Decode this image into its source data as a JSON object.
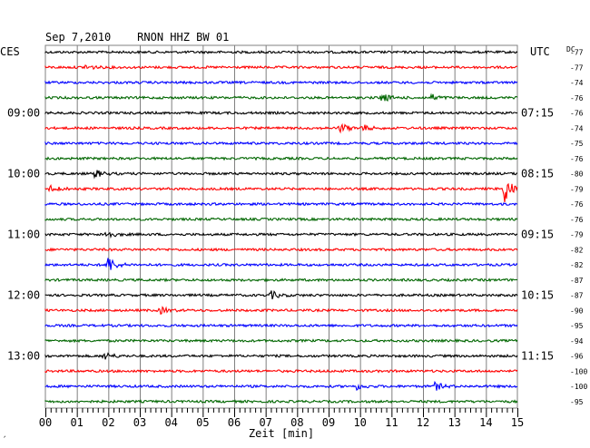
{
  "header": {
    "title": "Sep 7,2010    RNON HHZ BW 01",
    "left_timezone": "CES",
    "right_timezone": "UTC",
    "dc_label": "DC"
  },
  "footer": {
    "x_axis_label": "Zeit [min]",
    "corner_mark": "´"
  },
  "colors": {
    "trace_cycle": [
      "#000000",
      "#ff0000",
      "#0000ff",
      "#006600"
    ],
    "grid": "#808080",
    "background": "#ffffff"
  },
  "chart_data": {
    "type": "line",
    "title": "Sep 7,2010    RNON HHZ BW 01",
    "xlabel": "Zeit [min]",
    "xlim": [
      0,
      15
    ],
    "x_ticks": [
      "00",
      "01",
      "02",
      "03",
      "04",
      "05",
      "06",
      "07",
      "08",
      "09",
      "10",
      "11",
      "12",
      "13",
      "14",
      "15"
    ],
    "rows": 24,
    "grid": true,
    "left_time_labels": [
      {
        "row": 4,
        "text": "09:00"
      },
      {
        "row": 8,
        "text": "10:00"
      },
      {
        "row": 12,
        "text": "11:00"
      },
      {
        "row": 16,
        "text": "12:00"
      },
      {
        "row": 20,
        "text": "13:00"
      }
    ],
    "right_time_labels": [
      {
        "row": 4,
        "text": "07:15"
      },
      {
        "row": 8,
        "text": "08:15"
      },
      {
        "row": 12,
        "text": "09:15"
      },
      {
        "row": 16,
        "text": "10:15"
      },
      {
        "row": 20,
        "text": "11:15"
      }
    ],
    "dc_offsets": [
      "-77",
      "-77",
      "-74",
      "-76",
      "-76",
      "-74",
      "-75",
      "-76",
      "-80",
      "-79",
      "-76",
      "-76",
      "-79",
      "-82",
      "-82",
      "-87",
      "-87",
      "-90",
      "-95",
      "-94",
      "-96",
      "-100",
      "-100",
      "-95"
    ],
    "events": [
      {
        "row": 1,
        "minute": 1.3,
        "amplitude": 3
      },
      {
        "row": 3,
        "minute": 10.7,
        "amplitude": 5
      },
      {
        "row": 3,
        "minute": 12.3,
        "amplitude": 3
      },
      {
        "row": 5,
        "minute": 9.4,
        "amplitude": 5
      },
      {
        "row": 5,
        "minute": 10.1,
        "amplitude": 3
      },
      {
        "row": 8,
        "minute": 1.6,
        "amplitude": 4
      },
      {
        "row": 9,
        "minute": 0.2,
        "amplitude": 4
      },
      {
        "row": 9,
        "minute": 14.6,
        "amplitude": 16
      },
      {
        "row": 12,
        "minute": 1.9,
        "amplitude": 5
      },
      {
        "row": 14,
        "minute": 2.0,
        "amplitude": 9
      },
      {
        "row": 16,
        "minute": 7.2,
        "amplitude": 4
      },
      {
        "row": 17,
        "minute": 3.7,
        "amplitude": 3
      },
      {
        "row": 20,
        "minute": 1.9,
        "amplitude": 4
      },
      {
        "row": 22,
        "minute": 9.9,
        "amplitude": 3
      },
      {
        "row": 22,
        "minute": 12.4,
        "amplitude": 4
      }
    ]
  }
}
